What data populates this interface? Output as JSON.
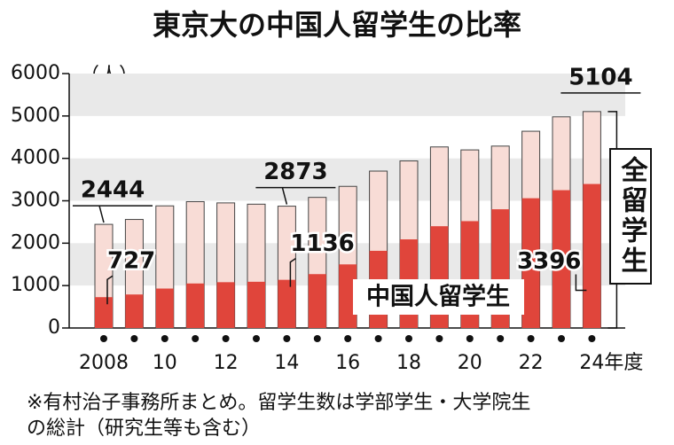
{
  "chart_data": {
    "type": "bar",
    "title": "東京大の中国人留学生の比率",
    "y_label": "（人）",
    "categories": [
      "2008",
      null,
      "10",
      null,
      "12",
      null,
      "14",
      null,
      "16",
      null,
      "18",
      null,
      "20",
      null,
      "22",
      null,
      "24年度"
    ],
    "series": [
      {
        "name": "全留学生",
        "color": "#f8dcd6",
        "values": [
          2444,
          2560,
          2880,
          2980,
          2950,
          2920,
          2873,
          3080,
          3340,
          3700,
          3940,
          4270,
          4200,
          4290,
          4640,
          4980,
          5104
        ],
        "value_labels": [
          "2444",
          null,
          null,
          null,
          null,
          null,
          "2873",
          null,
          null,
          null,
          null,
          null,
          null,
          null,
          null,
          null,
          "5104"
        ]
      },
      {
        "name": "中国人留学生",
        "color": "#e0453b",
        "values": [
          727,
          790,
          930,
          1050,
          1080,
          1090,
          1136,
          1270,
          1500,
          1820,
          2090,
          2400,
          2520,
          2800,
          3060,
          3250,
          3396
        ],
        "value_labels": [
          "727",
          null,
          null,
          null,
          null,
          null,
          "1136",
          null,
          null,
          null,
          null,
          null,
          null,
          null,
          null,
          null,
          "3396"
        ]
      }
    ],
    "ylim": [
      0,
      6000
    ],
    "yticks": [
      0,
      1000,
      2000,
      3000,
      4000,
      5000,
      6000
    ],
    "grid": true,
    "note": [
      "※有村治子事務所まとめ。留学生数は学部学生・大学院生",
      "の総計（研究生等も含む）"
    ]
  }
}
